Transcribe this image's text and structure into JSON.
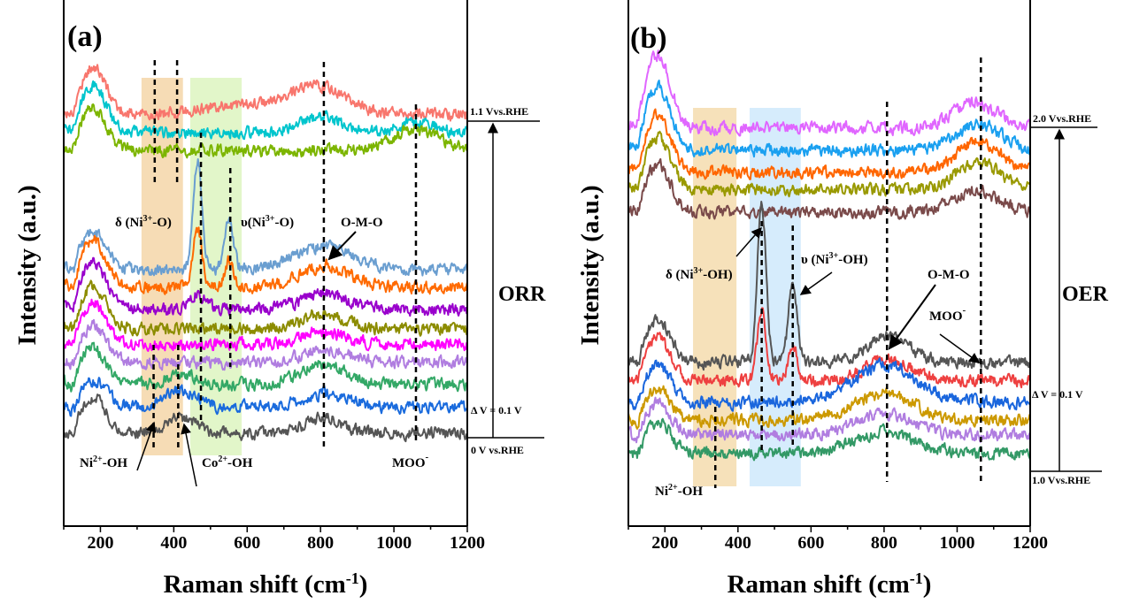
{
  "chart_data": [
    {
      "type": "line",
      "panel_label": "(a)",
      "xlabel": "Raman shift (cm-1)",
      "xlabel_parts": {
        "main": "Raman shift (cm",
        "sup": "-1",
        "end": ")"
      },
      "ylabel": "Intensity (a.u.)",
      "xlim": [
        100,
        1200
      ],
      "ylim": [
        0,
        100
      ],
      "xticks": [
        200,
        400,
        600,
        800,
        1000,
        1200
      ],
      "grid": false,
      "note": "",
      "series": [
        {
          "color": "#f8766d",
          "offset": 78.2,
          "peaks": [
            [
              180,
              9,
              35
            ],
            [
              800,
              5,
              70
            ],
            [
              600,
              2,
              120
            ]
          ]
        },
        {
          "color": "#00c5cd",
          "offset": 74.8,
          "peaks": [
            [
              180,
              9,
              35
            ],
            [
              800,
              3,
              60
            ],
            [
              1060,
              2,
              50
            ]
          ]
        },
        {
          "color": "#7cb500",
          "offset": 71.4,
          "peaks": [
            [
              180,
              8,
              35
            ],
            [
              1060,
              4,
              60
            ]
          ]
        },
        {
          "color": "#6a9ed0",
          "offset": 48.7,
          "peaks": [
            [
              180,
              7,
              35
            ],
            [
              465,
              21,
              12
            ],
            [
              550,
              10,
              12
            ],
            [
              810,
              4.5,
              80
            ]
          ]
        },
        {
          "color": "#ff6a00",
          "offset": 45.4,
          "peaks": [
            [
              180,
              9,
              35
            ],
            [
              465,
              11,
              12
            ],
            [
              550,
              5,
              12
            ],
            [
              810,
              4,
              70
            ]
          ]
        },
        {
          "color": "#9900cc",
          "offset": 41.2,
          "peaks": [
            [
              180,
              9,
              35
            ],
            [
              465,
              3,
              20
            ],
            [
              810,
              3,
              60
            ]
          ]
        },
        {
          "color": "#8c8c00",
          "offset": 37.5,
          "peaks": [
            [
              180,
              8,
              35
            ],
            [
              810,
              3,
              60
            ]
          ]
        },
        {
          "color": "#ff00ff",
          "offset": 34.5,
          "peaks": [
            [
              180,
              8,
              35
            ],
            [
              810,
              2.5,
              60
            ]
          ]
        },
        {
          "color": "#b07de0",
          "offset": 31.1,
          "peaks": [
            [
              180,
              7,
              35
            ],
            [
              810,
              2.5,
              60
            ]
          ]
        },
        {
          "color": "#33a866",
          "offset": 26.9,
          "peaks": [
            [
              180,
              7,
              35
            ],
            [
              420,
              2,
              40
            ],
            [
              810,
              4,
              60
            ]
          ]
        },
        {
          "color": "#1a6bdd",
          "offset": 22.7,
          "peaks": [
            [
              180,
              5,
              35
            ],
            [
              420,
              3,
              40
            ],
            [
              810,
              2.5,
              60
            ]
          ]
        },
        {
          "color": "#555555",
          "offset": 17.6,
          "peaks": [
            [
              180,
              7,
              35
            ],
            [
              420,
              3,
              40
            ],
            [
              810,
              3,
              50
            ]
          ]
        }
      ],
      "dashed_lines": [
        348,
        409,
        474,
        554,
        809,
        1060,
        345,
        412
      ],
      "shaded_regions": [
        {
          "from": 312,
          "to": 425,
          "color": "#f5d6a8"
        },
        {
          "from": 445,
          "to": 585,
          "color": "#ddf5c0"
        }
      ],
      "annotations": {
        "delta": {
          "pre": "δ (Ni",
          "sup": "3+",
          "post": "-O)"
        },
        "nu": {
          "pre": "υ(Ni",
          "sup": "3+",
          "post": "-O)"
        },
        "omo": "O-M-O",
        "ni2": {
          "pre": "Ni",
          "sup": "2+",
          "post": "-OH"
        },
        "co2": {
          "pre": "Co",
          "sup": "2+",
          "post": "-OH"
        },
        "moo": {
          "pre": "MOO",
          "sup": "-"
        },
        "top_potential": "1.1 Vvs.RHE",
        "step": "Δ V = 0.1 V",
        "bottom_potential": "0 V vs.RHE",
        "process": "ORR"
      }
    },
    {
      "type": "line",
      "panel_label": "(b)",
      "xlabel": "Raman shift (cm-1)",
      "xlabel_parts": {
        "main": "Raman shift (cm",
        "sup": "-1",
        "end": ")"
      },
      "ylabel": "Intensity (a.u.)",
      "xlim": [
        100,
        1200
      ],
      "ylim": [
        0,
        100
      ],
      "xticks": [
        200,
        400,
        600,
        800,
        1000,
        1200
      ],
      "grid": false,
      "series": [
        {
          "color": "#e066ff",
          "offset": 75.6,
          "peaks": [
            [
              180,
              14,
              35
            ],
            [
              1050,
              5,
              60
            ]
          ]
        },
        {
          "color": "#1aa0f0",
          "offset": 71.4,
          "peaks": [
            [
              180,
              12,
              35
            ],
            [
              1060,
              5,
              60
            ]
          ]
        },
        {
          "color": "#ff6600",
          "offset": 67.2,
          "peaks": [
            [
              180,
              11,
              35
            ],
            [
              1060,
              6,
              60
            ]
          ]
        },
        {
          "color": "#999900",
          "offset": 63.9,
          "peaks": [
            [
              180,
              10,
              35
            ],
            [
              1060,
              5,
              60
            ]
          ]
        },
        {
          "color": "#7a4a4a",
          "offset": 59.7,
          "peaks": [
            [
              180,
              9,
              35
            ],
            [
              1050,
              4,
              60
            ]
          ]
        },
        {
          "color": "#555555",
          "offset": 31.1,
          "peaks": [
            [
              180,
              8,
              35
            ],
            [
              465,
              30,
              12
            ],
            [
              550,
              15,
              12
            ],
            [
              810,
              5,
              60
            ]
          ]
        },
        {
          "color": "#ee4040",
          "offset": 27.7,
          "peaks": [
            [
              180,
              8,
              35
            ],
            [
              465,
              13,
              12
            ],
            [
              550,
              7,
              12
            ],
            [
              810,
              4,
              60
            ]
          ]
        },
        {
          "color": "#1a66dd",
          "offset": 23.5,
          "peaks": [
            [
              180,
              7,
              35
            ],
            [
              800,
              7,
              90
            ]
          ]
        },
        {
          "color": "#cc9900",
          "offset": 20.2,
          "peaks": [
            [
              180,
              6,
              35
            ],
            [
              800,
              5,
              80
            ]
          ]
        },
        {
          "color": "#b07de0",
          "offset": 17.3,
          "peaks": [
            [
              180,
              6,
              35
            ],
            [
              800,
              4,
              80
            ]
          ]
        },
        {
          "color": "#339966",
          "offset": 13.9,
          "peaks": [
            [
              180,
              6,
              35
            ],
            [
              800,
              4,
              80
            ]
          ]
        }
      ],
      "dashed_lines": [
        465,
        550,
        808,
        1065,
        338
      ],
      "shaded_regions": [
        {
          "from": 277,
          "to": 396,
          "color": "#f5dcae"
        },
        {
          "from": 432,
          "to": 572,
          "color": "#cfe9fb"
        }
      ],
      "annotations": {
        "delta": {
          "pre": "δ (Ni",
          "sup": "3+",
          "post": "-OH)"
        },
        "nu": {
          "pre": "υ (Ni",
          "sup": "3+",
          "post": "-OH)"
        },
        "omo": "O-M-O",
        "moo": {
          "pre": "MOO",
          "sup": "-"
        },
        "ni2": {
          "pre": "Ni",
          "sup": "2+",
          "post": "-OH"
        },
        "top_potential": "2.0 Vvs.RHE",
        "step": "Δ V = 0.1 V",
        "bottom_potential": "1.0 Vvs.RHE",
        "process": "OER"
      }
    }
  ]
}
